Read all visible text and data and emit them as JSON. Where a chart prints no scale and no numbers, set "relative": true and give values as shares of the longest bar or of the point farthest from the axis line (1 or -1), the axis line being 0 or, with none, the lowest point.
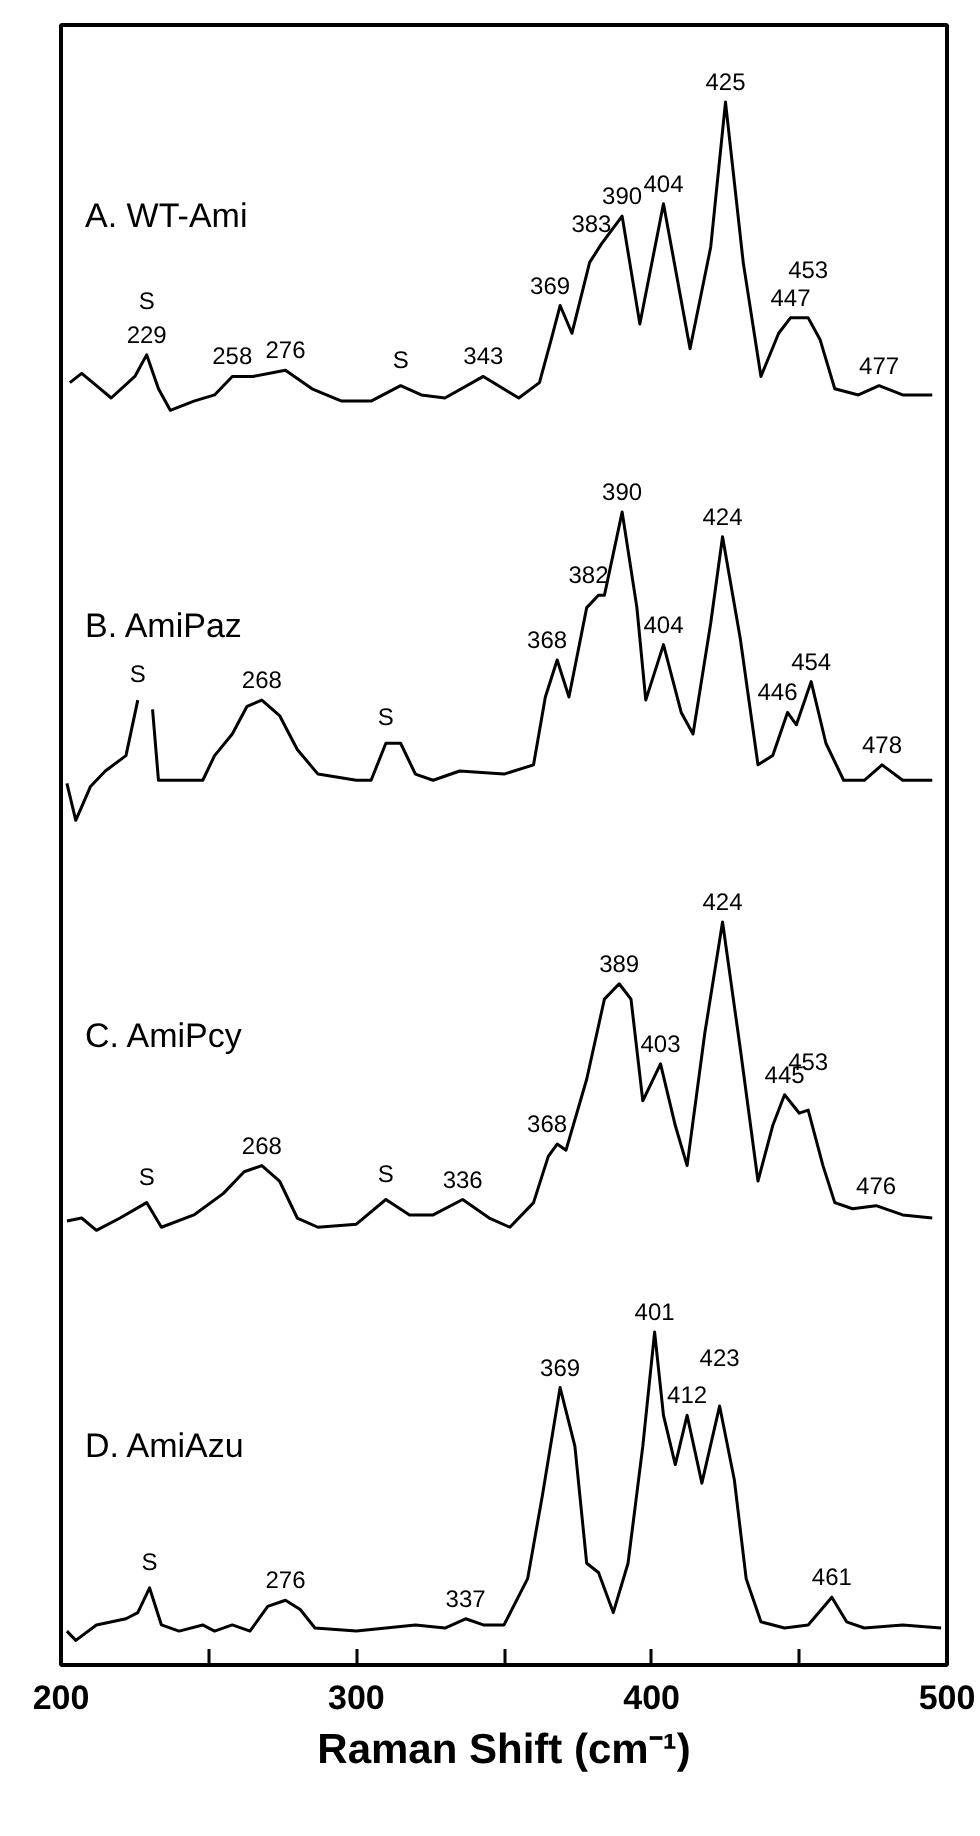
{
  "chart_data": [
    {
      "type": "line",
      "title": "A. WT-Ami",
      "relative": true,
      "color": "#000000",
      "xlim": [
        200,
        500
      ],
      "tick_labels": false,
      "x": [
        203,
        207,
        212,
        217,
        225,
        229,
        233,
        237,
        245,
        252,
        258,
        265,
        276,
        285,
        295,
        305,
        315,
        322,
        330,
        343,
        355,
        362,
        366,
        369,
        373,
        379,
        383,
        390,
        396,
        404,
        413,
        420,
        425,
        431,
        437,
        443,
        447,
        453,
        457,
        462,
        470,
        477,
        485,
        495
      ],
      "values": [
        0.09,
        0.12,
        0.08,
        0.04,
        0.11,
        0.18,
        0.07,
        0,
        0.03,
        0.05,
        0.11,
        0.11,
        0.13,
        0.07,
        0.03,
        0.03,
        0.08,
        0.05,
        0.04,
        0.11,
        0.04,
        0.09,
        0.23,
        0.34,
        0.25,
        0.48,
        0.54,
        0.63,
        0.28,
        0.67,
        0.2,
        0.53,
        1,
        0.48,
        0.11,
        0.25,
        0.3,
        0.3,
        0.23,
        0.07,
        0.05,
        0.08,
        0.05,
        0.05
      ],
      "annotations": [
        {
          "text": "229",
          "x": 229,
          "y": 0.18
        },
        {
          "text": "S",
          "x": 229,
          "y": 0.18
        },
        {
          "text": "258",
          "x": 258,
          "y": 0.11
        },
        {
          "text": "276",
          "x": 276,
          "y": 0.13
        },
        {
          "text": "S",
          "x": 315,
          "y": 0.08
        },
        {
          "text": "343",
          "x": 343,
          "y": 0.11
        },
        {
          "text": "369",
          "x": 369,
          "y": 0.34
        },
        {
          "text": "383",
          "x": 383,
          "y": 0.54
        },
        {
          "text": "390",
          "x": 390,
          "y": 0.63
        },
        {
          "text": "404",
          "x": 404,
          "y": 0.67
        },
        {
          "text": "425",
          "x": 425,
          "y": 1
        },
        {
          "text": "447",
          "x": 447,
          "y": 0.3
        },
        {
          "text": "453",
          "x": 453,
          "y": 0.3
        },
        {
          "text": "477",
          "x": 477,
          "y": 0.08
        }
      ]
    },
    {
      "type": "line",
      "title": "B. AmiPaz",
      "relative": true,
      "color": "#000000",
      "xlim": [
        200,
        500
      ],
      "tick_labels": false,
      "x": [
        202,
        205,
        210,
        215,
        222,
        226,
        228,
        231,
        233,
        240,
        248,
        252,
        258,
        263,
        268,
        274,
        280,
        287,
        300,
        305,
        310,
        315,
        320,
        326,
        335,
        350,
        360,
        364,
        368,
        372,
        378,
        382,
        384,
        390,
        395,
        398,
        404,
        410,
        414,
        420,
        424,
        430,
        436,
        441,
        446,
        449,
        454,
        459,
        465,
        472,
        478,
        485,
        495
      ],
      "values": [
        0.12,
        0,
        0.11,
        0.16,
        0.21,
        0.39,
        null,
        0.36,
        0.13,
        0.13,
        0.13,
        0.21,
        0.28,
        0.37,
        0.39,
        0.34,
        0.23,
        0.15,
        0.13,
        0.13,
        0.25,
        0.25,
        0.15,
        0.13,
        0.16,
        0.15,
        0.18,
        0.4,
        0.52,
        0.4,
        0.69,
        0.73,
        0.73,
        1,
        0.69,
        0.39,
        0.57,
        0.35,
        0.28,
        0.64,
        0.92,
        0.59,
        0.18,
        0.21,
        0.35,
        0.31,
        0.45,
        0.25,
        0.13,
        0.13,
        0.18,
        0.13,
        0.13
      ],
      "annotations": [
        {
          "text": "S",
          "x": 226,
          "y": 0.39
        },
        {
          "text": "268",
          "x": 268,
          "y": 0.39
        },
        {
          "text": "S",
          "x": 310,
          "y": 0.25
        },
        {
          "text": "368",
          "x": 368,
          "y": 0.52
        },
        {
          "text": "382",
          "x": 382,
          "y": 0.73
        },
        {
          "text": "390",
          "x": 390,
          "y": 1
        },
        {
          "text": "404",
          "x": 404,
          "y": 0.57
        },
        {
          "text": "424",
          "x": 424,
          "y": 0.92
        },
        {
          "text": "446",
          "x": 446,
          "y": 0.35
        },
        {
          "text": "454",
          "x": 454,
          "y": 0.45
        },
        {
          "text": "478",
          "x": 478,
          "y": 0.18
        }
      ]
    },
    {
      "type": "line",
      "title": "C. AmiPcy",
      "relative": true,
      "color": "#000000",
      "xlim": [
        200,
        500
      ],
      "tick_labels": false,
      "x": [
        202,
        207,
        212,
        220,
        229,
        234,
        245,
        255,
        262,
        268,
        274,
        280,
        287,
        300,
        310,
        318,
        326,
        336,
        345,
        352,
        360,
        365,
        368,
        371,
        378,
        384,
        389,
        393,
        397,
        403,
        408,
        412,
        418,
        424,
        430,
        436,
        441,
        445,
        450,
        453,
        458,
        462,
        468,
        476,
        485,
        495
      ],
      "values": [
        0.03,
        0.04,
        0,
        0.04,
        0.09,
        0.01,
        0.05,
        0.12,
        0.19,
        0.21,
        0.16,
        0.04,
        0.01,
        0.02,
        0.1,
        0.05,
        0.05,
        0.1,
        0.04,
        0.01,
        0.09,
        0.24,
        0.28,
        0.26,
        0.49,
        0.75,
        0.8,
        0.75,
        0.42,
        0.54,
        0.34,
        0.21,
        0.64,
        1,
        0.59,
        0.16,
        0.34,
        0.44,
        0.38,
        0.39,
        0.21,
        0.09,
        0.07,
        0.08,
        0.05,
        0.04
      ],
      "annotations": [
        {
          "text": "S",
          "x": 229,
          "y": 0.09
        },
        {
          "text": "268",
          "x": 268,
          "y": 0.21
        },
        {
          "text": "S",
          "x": 310,
          "y": 0.1
        },
        {
          "text": "336",
          "x": 336,
          "y": 0.1
        },
        {
          "text": "368",
          "x": 368,
          "y": 0.28
        },
        {
          "text": "389",
          "x": 389,
          "y": 0.8
        },
        {
          "text": "403",
          "x": 403,
          "y": 0.54
        },
        {
          "text": "424",
          "x": 424,
          "y": 1
        },
        {
          "text": "445",
          "x": 445,
          "y": 0.44
        },
        {
          "text": "453",
          "x": 453,
          "y": 0.39
        },
        {
          "text": "476",
          "x": 476,
          "y": 0.08
        }
      ]
    },
    {
      "type": "line",
      "title": "D. AmiAzu",
      "relative": true,
      "color": "#000000",
      "xlim": [
        200,
        500
      ],
      "tick_labels": "x",
      "xlabel": "Raman Shift (cm⁻¹)",
      "xticks": [
        200,
        {
          "value": 250,
          "label": null
        },
        300,
        {
          "value": 350,
          "label": null
        },
        400,
        {
          "value": 450,
          "label": null
        },
        500
      ],
      "x": [
        202,
        205,
        212,
        222,
        226,
        230,
        234,
        240,
        248,
        252,
        258,
        264,
        270,
        276,
        281,
        286,
        300,
        320,
        330,
        337,
        343,
        350,
        358,
        363,
        369,
        374,
        378,
        382,
        387,
        392,
        397,
        401,
        404,
        408,
        412,
        417,
        423,
        428,
        432,
        437,
        445,
        453,
        461,
        466,
        472,
        485,
        498
      ],
      "values": [
        0.03,
        0,
        0.05,
        0.07,
        0.09,
        0.17,
        0.05,
        0.03,
        0.05,
        0.03,
        0.05,
        0.03,
        0.11,
        0.13,
        0.1,
        0.04,
        0.03,
        0.05,
        0.04,
        0.07,
        0.05,
        0.05,
        0.2,
        0.47,
        0.82,
        0.63,
        0.25,
        0.22,
        0.09,
        0.25,
        0.63,
        1,
        0.73,
        0.57,
        0.73,
        0.51,
        0.76,
        0.52,
        0.2,
        0.06,
        0.04,
        0.05,
        0.14,
        0.06,
        0.04,
        0.05,
        0.04
      ],
      "annotations": [
        {
          "text": "S",
          "x": 230,
          "y": 0.17
        },
        {
          "text": "276",
          "x": 276,
          "y": 0.13
        },
        {
          "text": "337",
          "x": 337,
          "y": 0.07
        },
        {
          "text": "369",
          "x": 369,
          "y": 0.82
        },
        {
          "text": "401",
          "x": 401,
          "y": 1
        },
        {
          "text": "412",
          "x": 412,
          "y": 0.73
        },
        {
          "text": "423",
          "x": 423,
          "y": 0.76
        },
        {
          "text": "461",
          "x": 461,
          "y": 0.14
        }
      ]
    }
  ]
}
